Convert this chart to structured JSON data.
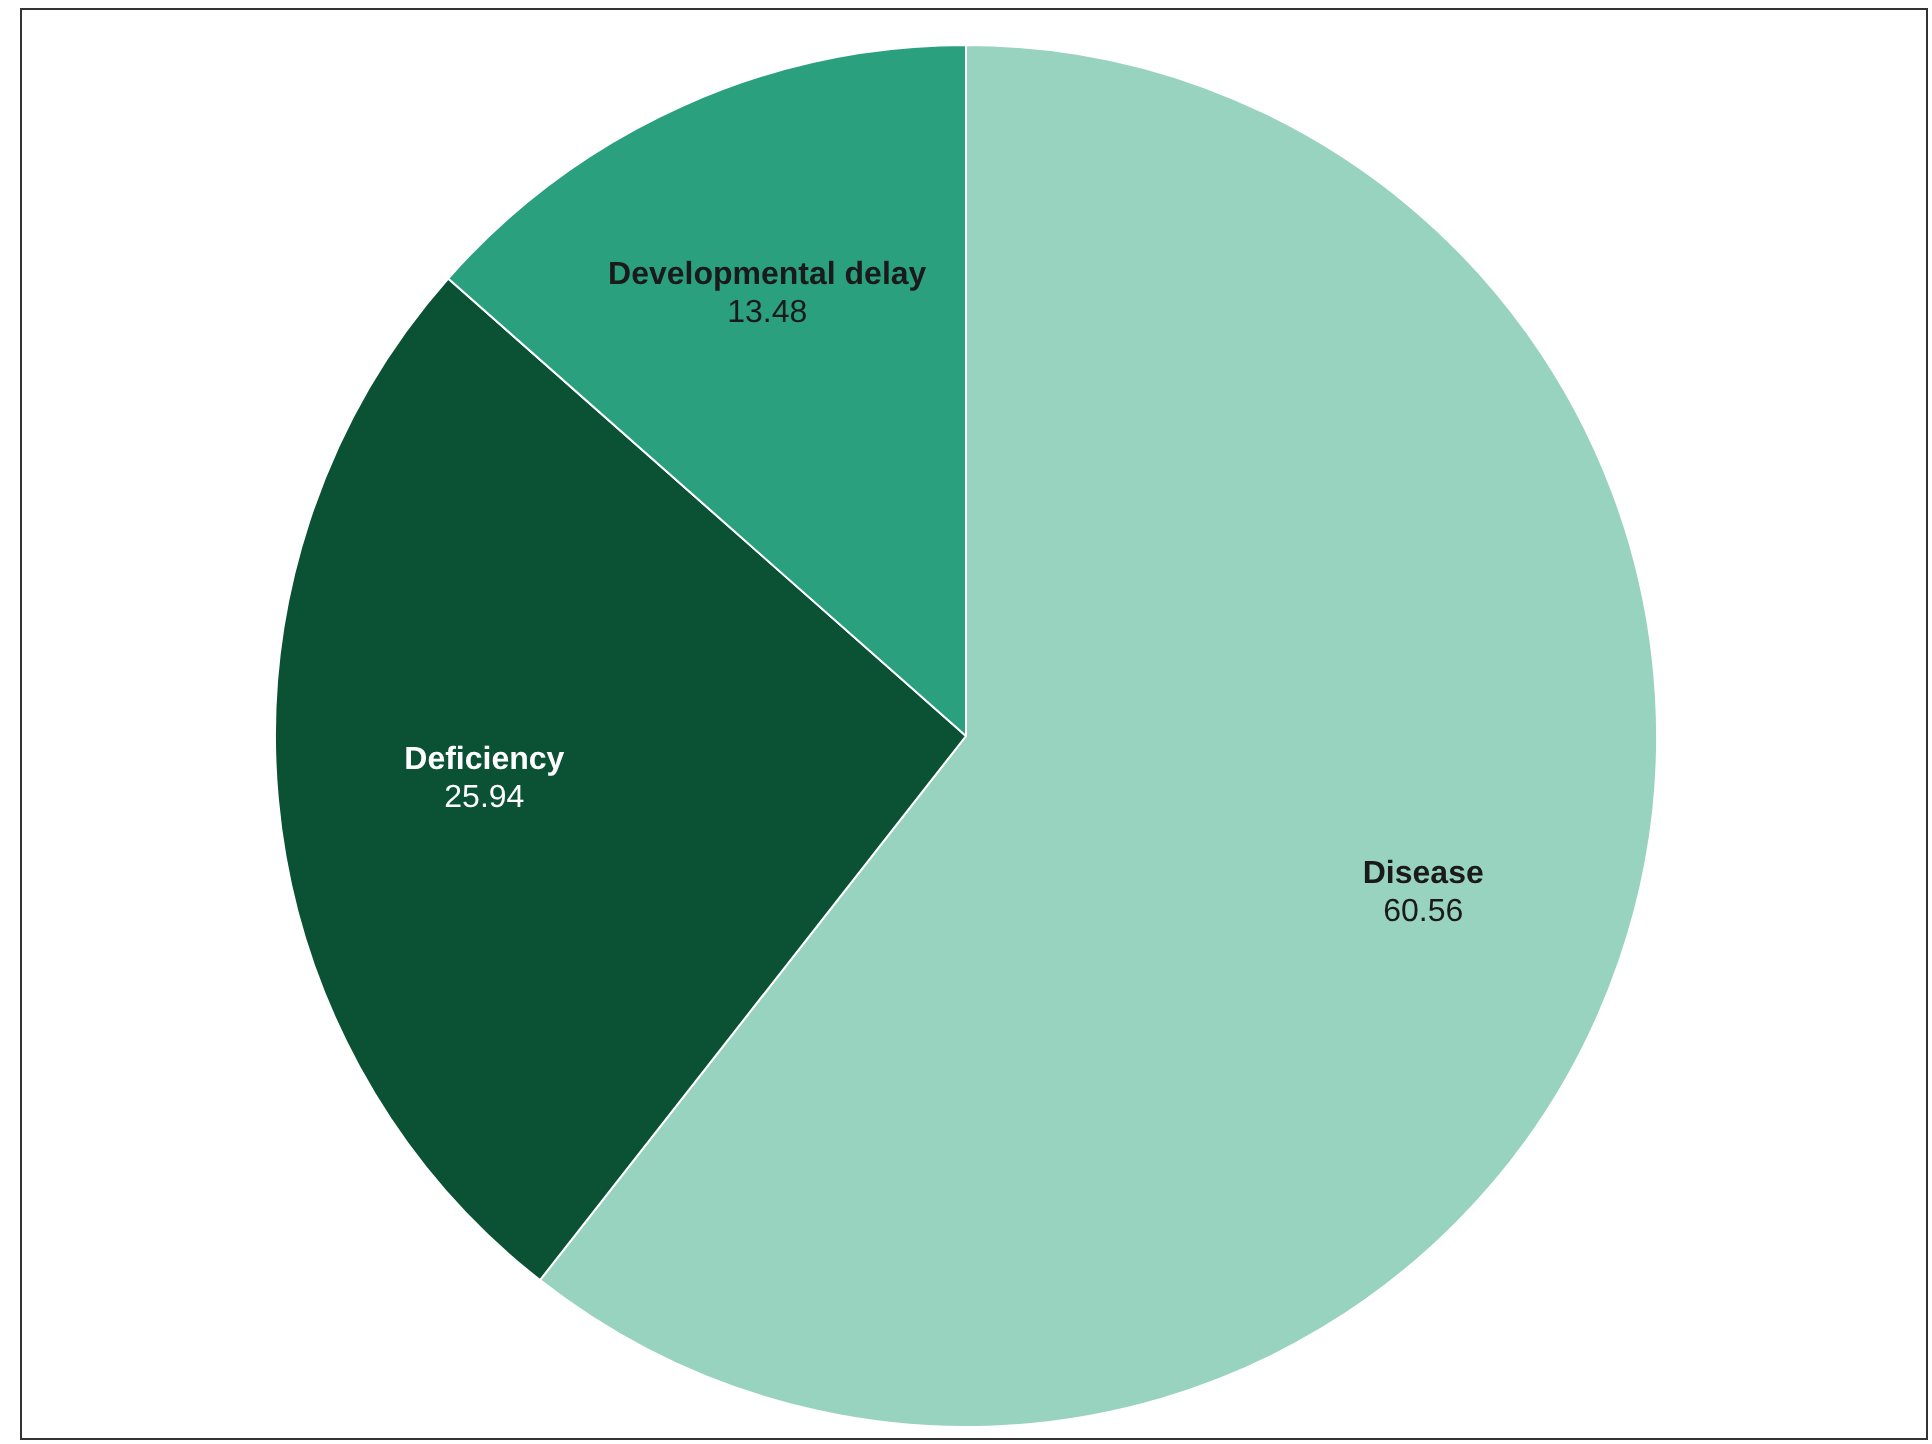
{
  "chart_data": {
    "type": "pie",
    "categories": [
      "Disease",
      "Deficiency",
      "Developmental delay"
    ],
    "values": [
      60.56,
      25.94,
      13.48
    ],
    "colors": [
      "#98d3c0",
      "#0b5235",
      "#2aa07f"
    ],
    "data_labels": true,
    "legend": false
  }
}
